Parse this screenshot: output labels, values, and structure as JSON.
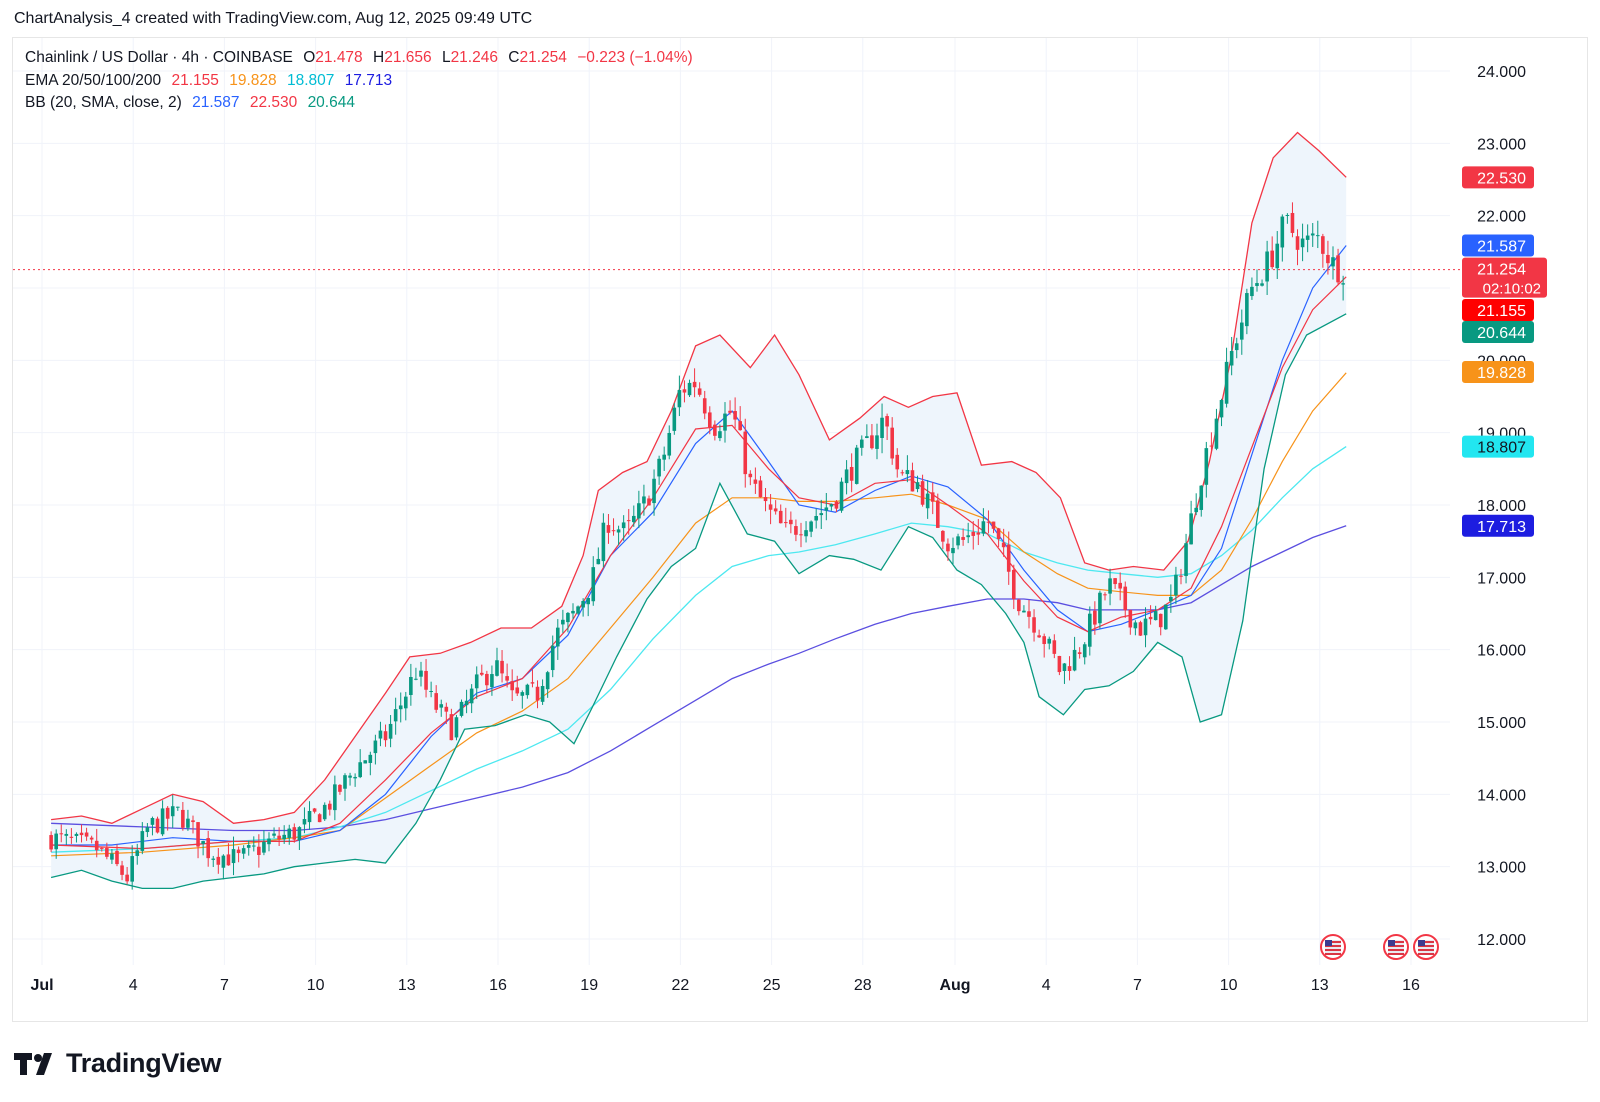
{
  "header": {
    "attribution": "ChartAnalysis_4 created with TradingView.com, Aug 12, 2025 09:49 UTC"
  },
  "legend": {
    "symbol": "Chainlink / US Dollar · 4h · COINBASE",
    "open_label": "O",
    "open": "21.478",
    "high_label": "H",
    "high": "21.656",
    "low_label": "L",
    "low": "21.246",
    "close_label": "C",
    "close": "21.254",
    "change": "−0.223 (−1.04%)",
    "ema_label": "EMA 20/50/100/200",
    "ema20": "21.155",
    "ema50": "19.828",
    "ema100": "18.807",
    "ema200": "17.713",
    "bb_label": "BB (20, SMA, close, 2)",
    "bb_basis": "21.587",
    "bb_upper": "22.530",
    "bb_lower": "20.644"
  },
  "brand": {
    "name": "TradingView"
  },
  "chart_data": {
    "type": "candlestick",
    "symbol": "Chainlink / US Dollar",
    "interval": "4h",
    "exchange": "COINBASE",
    "ylim": [
      11.7,
      24.5
    ],
    "y_ticks": [
      "24.000",
      "23.000",
      "22.000",
      "21.000",
      "20.000",
      "19.000",
      "18.000",
      "17.000",
      "16.000",
      "15.000",
      "14.000",
      "13.000",
      "12.000"
    ],
    "x_ticks": [
      "Jul",
      "4",
      "7",
      "10",
      "13",
      "16",
      "19",
      "22",
      "25",
      "28",
      "Aug",
      "4",
      "7",
      "10",
      "13",
      "16"
    ],
    "colors": {
      "up": "#089981",
      "down": "#f23645",
      "ema20": "#f23645",
      "ema50": "#f7931a",
      "ema100": "#4de8f0",
      "ema200": "#5b4fe0",
      "bb_basis": "#2962ff",
      "bb_upper": "#f23645",
      "bb_lower": "#089981",
      "bb_fill": "#eef5fc"
    },
    "close_price": 21.254,
    "countdown": "02:10:02",
    "price_labels": [
      {
        "value": 22.53,
        "text": "22.530",
        "color": "#f23645"
      },
      {
        "value": 21.587,
        "text": "21.587",
        "color": "#2962ff"
      },
      {
        "value": 21.254,
        "text": "21.254",
        "color": "#f23645"
      },
      {
        "value": 21.155,
        "text": "21.155",
        "color": "#ff0000"
      },
      {
        "value": 20.644,
        "text": "20.644",
        "color": "#089981"
      },
      {
        "value": 19.828,
        "text": "19.828",
        "color": "#f7931a"
      },
      {
        "value": 18.807,
        "text": "18.807",
        "color": "#22e6f0"
      },
      {
        "value": 17.713,
        "text": "17.713",
        "color": "#1d1de0"
      }
    ],
    "close_path": [
      [
        0,
        13.4
      ],
      [
        1.5,
        13.25
      ],
      [
        2.5,
        12.85
      ],
      [
        3.2,
        13.55
      ],
      [
        4.2,
        13.75
      ],
      [
        5.2,
        13.2
      ],
      [
        6.2,
        13.1
      ],
      [
        7.2,
        13.35
      ],
      [
        8.2,
        13.5
      ],
      [
        9.2,
        13.9
      ],
      [
        10,
        14.35
      ],
      [
        11,
        14.8
      ],
      [
        12,
        15.7
      ],
      [
        12.5,
        15.3
      ],
      [
        13.2,
        14.9
      ],
      [
        14,
        15.5
      ],
      [
        14.6,
        15.8
      ],
      [
        15.2,
        15.3
      ],
      [
        16,
        15.4
      ],
      [
        16.6,
        16.2
      ],
      [
        17.2,
        16.5
      ],
      [
        17.8,
        16.95
      ],
      [
        18.3,
        17.8
      ],
      [
        18.9,
        17.6
      ],
      [
        19.5,
        18.0
      ],
      [
        20.1,
        18.6
      ],
      [
        20.7,
        19.6
      ],
      [
        21.2,
        19.7
      ],
      [
        21.8,
        19.1
      ],
      [
        22.4,
        19.3
      ],
      [
        23,
        18.3
      ],
      [
        23.6,
        17.9
      ],
      [
        24.2,
        17.6
      ],
      [
        24.8,
        17.8
      ],
      [
        25.3,
        17.9
      ],
      [
        25.8,
        18.1
      ],
      [
        26.3,
        18.5
      ],
      [
        26.8,
        18.8
      ],
      [
        27.4,
        19.2
      ],
      [
        27.9,
        18.4
      ],
      [
        28.5,
        18.3
      ],
      [
        29,
        17.9
      ],
      [
        29.5,
        17.5
      ],
      [
        30,
        17.5
      ],
      [
        30.8,
        17.8
      ],
      [
        31.3,
        17.3
      ],
      [
        31.8,
        16.7
      ],
      [
        32.5,
        16.3
      ],
      [
        33.2,
        15.7
      ],
      [
        33.8,
        16.0
      ],
      [
        34.3,
        16.45
      ],
      [
        34.8,
        16.9
      ],
      [
        35.3,
        16.6
      ],
      [
        35.8,
        16.3
      ],
      [
        36.4,
        16.4
      ],
      [
        36.9,
        16.7
      ],
      [
        37.3,
        17.4
      ],
      [
        37.8,
        18.4
      ],
      [
        38.3,
        19.2
      ],
      [
        38.9,
        20.2
      ],
      [
        39.5,
        21.0
      ],
      [
        40.1,
        21.4
      ],
      [
        40.6,
        21.9
      ],
      [
        41.2,
        21.6
      ],
      [
        41.7,
        21.7
      ],
      [
        42.2,
        21.3
      ],
      [
        42.6,
        21.25
      ]
    ],
    "bb_upper_path": [
      [
        0,
        13.65
      ],
      [
        1,
        13.7
      ],
      [
        2,
        13.6
      ],
      [
        3,
        13.8
      ],
      [
        4,
        14.0
      ],
      [
        5,
        13.9
      ],
      [
        6,
        13.6
      ],
      [
        7,
        13.65
      ],
      [
        8,
        13.75
      ],
      [
        9,
        14.2
      ],
      [
        10,
        14.8
      ],
      [
        11,
        15.4
      ],
      [
        11.8,
        15.9
      ],
      [
        12.8,
        15.95
      ],
      [
        13.8,
        16.1
      ],
      [
        14.8,
        16.3
      ],
      [
        15.8,
        16.3
      ],
      [
        16.8,
        16.6
      ],
      [
        17.5,
        17.3
      ],
      [
        18,
        18.2
      ],
      [
        18.8,
        18.45
      ],
      [
        19.6,
        18.6
      ],
      [
        20.4,
        19.3
      ],
      [
        21.2,
        20.2
      ],
      [
        22,
        20.35
      ],
      [
        23,
        19.9
      ],
      [
        23.8,
        20.35
      ],
      [
        24.6,
        19.8
      ],
      [
        25.6,
        18.9
      ],
      [
        26.6,
        19.2
      ],
      [
        27.4,
        19.5
      ],
      [
        28.2,
        19.35
      ],
      [
        29,
        19.5
      ],
      [
        29.8,
        19.55
      ],
      [
        30.6,
        18.55
      ],
      [
        31.6,
        18.6
      ],
      [
        32.4,
        18.45
      ],
      [
        33.2,
        18.1
      ],
      [
        34,
        17.2
      ],
      [
        34.8,
        17.1
      ],
      [
        35.6,
        17.15
      ],
      [
        36.6,
        17.1
      ],
      [
        37.4,
        17.5
      ],
      [
        38.1,
        18.6
      ],
      [
        38.8,
        20.0
      ],
      [
        39.5,
        21.9
      ],
      [
        40.2,
        22.8
      ],
      [
        41,
        23.15
      ],
      [
        41.7,
        22.9
      ],
      [
        42.6,
        22.53
      ]
    ],
    "bb_lower_path": [
      [
        0,
        12.85
      ],
      [
        1,
        12.95
      ],
      [
        2,
        12.8
      ],
      [
        3,
        12.7
      ],
      [
        4,
        12.7
      ],
      [
        5,
        12.8
      ],
      [
        6,
        12.85
      ],
      [
        7,
        12.9
      ],
      [
        8,
        13.0
      ],
      [
        9,
        13.05
      ],
      [
        10,
        13.1
      ],
      [
        11,
        13.05
      ],
      [
        12,
        13.6
      ],
      [
        12.8,
        14.2
      ],
      [
        13.6,
        14.9
      ],
      [
        14.6,
        14.95
      ],
      [
        15.6,
        15.1
      ],
      [
        16.4,
        15.0
      ],
      [
        17.2,
        14.7
      ],
      [
        17.8,
        15.2
      ],
      [
        18.6,
        15.9
      ],
      [
        19.6,
        16.7
      ],
      [
        20.4,
        17.15
      ],
      [
        21.2,
        17.4
      ],
      [
        22,
        18.3
      ],
      [
        22.9,
        17.6
      ],
      [
        23.8,
        17.5
      ],
      [
        24.6,
        17.05
      ],
      [
        25.6,
        17.3
      ],
      [
        26.4,
        17.25
      ],
      [
        27.3,
        17.1
      ],
      [
        28.2,
        17.7
      ],
      [
        29,
        17.55
      ],
      [
        29.8,
        17.1
      ],
      [
        30.6,
        16.9
      ],
      [
        31.4,
        16.5
      ],
      [
        32,
        16.1
      ],
      [
        32.5,
        15.35
      ],
      [
        33.3,
        15.1
      ],
      [
        34,
        15.45
      ],
      [
        34.8,
        15.5
      ],
      [
        35.6,
        15.7
      ],
      [
        36.4,
        16.1
      ],
      [
        37.2,
        15.9
      ],
      [
        37.8,
        15.0
      ],
      [
        38.5,
        15.1
      ],
      [
        39.2,
        16.4
      ],
      [
        39.9,
        18.5
      ],
      [
        40.6,
        19.8
      ],
      [
        41.3,
        20.35
      ],
      [
        42.6,
        20.644
      ]
    ],
    "bb_basis_path": [
      [
        0,
        13.3
      ],
      [
        2,
        13.3
      ],
      [
        4,
        13.4
      ],
      [
        6,
        13.35
      ],
      [
        8,
        13.35
      ],
      [
        9.5,
        13.5
      ],
      [
        11,
        14.0
      ],
      [
        12.5,
        14.8
      ],
      [
        14,
        15.4
      ],
      [
        15.5,
        15.6
      ],
      [
        17,
        16.2
      ],
      [
        18.4,
        17.3
      ],
      [
        19.8,
        17.9
      ],
      [
        21.2,
        18.85
      ],
      [
        22.4,
        19.3
      ],
      [
        23.6,
        18.6
      ],
      [
        24.6,
        18.0
      ],
      [
        25.8,
        17.9
      ],
      [
        27.1,
        18.2
      ],
      [
        28.3,
        18.4
      ],
      [
        29.5,
        18.25
      ],
      [
        30.8,
        17.8
      ],
      [
        32,
        17.1
      ],
      [
        33.1,
        16.55
      ],
      [
        34.1,
        16.25
      ],
      [
        35.2,
        16.35
      ],
      [
        36.4,
        16.55
      ],
      [
        37.5,
        16.75
      ],
      [
        38.5,
        17.4
      ],
      [
        39.5,
        18.7
      ],
      [
        40.5,
        20.0
      ],
      [
        41.5,
        21.0
      ],
      [
        42.6,
        21.587
      ]
    ],
    "ema20_path": [
      [
        0,
        13.3
      ],
      [
        3,
        13.25
      ],
      [
        6,
        13.35
      ],
      [
        8,
        13.35
      ],
      [
        9.5,
        13.6
      ],
      [
        11,
        14.2
      ],
      [
        12.5,
        14.85
      ],
      [
        14,
        15.35
      ],
      [
        15.5,
        15.6
      ],
      [
        17,
        16.3
      ],
      [
        18.4,
        17.3
      ],
      [
        19.8,
        18.1
      ],
      [
        21.2,
        19.05
      ],
      [
        22.4,
        19.1
      ],
      [
        23.6,
        18.5
      ],
      [
        24.6,
        18.1
      ],
      [
        25.8,
        18.0
      ],
      [
        27.1,
        18.3
      ],
      [
        28.3,
        18.35
      ],
      [
        29.5,
        18.0
      ],
      [
        30.8,
        17.6
      ],
      [
        32,
        16.95
      ],
      [
        33.1,
        16.45
      ],
      [
        34.1,
        16.25
      ],
      [
        35.2,
        16.45
      ],
      [
        36.4,
        16.55
      ],
      [
        37.5,
        16.85
      ],
      [
        38.5,
        17.7
      ],
      [
        39.5,
        18.8
      ],
      [
        40.5,
        19.9
      ],
      [
        41.5,
        20.7
      ],
      [
        42.6,
        21.155
      ]
    ],
    "ema50_path": [
      [
        0,
        13.15
      ],
      [
        3,
        13.2
      ],
      [
        6,
        13.3
      ],
      [
        8,
        13.4
      ],
      [
        9.5,
        13.5
      ],
      [
        11,
        13.95
      ],
      [
        12.5,
        14.4
      ],
      [
        14,
        14.85
      ],
      [
        15.5,
        15.15
      ],
      [
        17,
        15.6
      ],
      [
        18.4,
        16.3
      ],
      [
        19.8,
        17.0
      ],
      [
        21.2,
        17.75
      ],
      [
        22.4,
        18.1
      ],
      [
        23.6,
        18.1
      ],
      [
        24.6,
        18.05
      ],
      [
        25.8,
        18.05
      ],
      [
        27.1,
        18.1
      ],
      [
        28.3,
        18.15
      ],
      [
        29.5,
        18.0
      ],
      [
        30.8,
        17.8
      ],
      [
        32,
        17.35
      ],
      [
        33.1,
        17.05
      ],
      [
        34.1,
        16.85
      ],
      [
        35.2,
        16.8
      ],
      [
        36.4,
        16.75
      ],
      [
        37.5,
        16.75
      ],
      [
        38.5,
        17.1
      ],
      [
        39.5,
        17.8
      ],
      [
        40.5,
        18.6
      ],
      [
        41.5,
        19.3
      ],
      [
        42.6,
        19.828
      ]
    ],
    "ema100_path": [
      [
        0,
        13.2
      ],
      [
        3,
        13.25
      ],
      [
        6,
        13.35
      ],
      [
        8,
        13.4
      ],
      [
        9.5,
        13.55
      ],
      [
        11,
        13.75
      ],
      [
        12.5,
        14.05
      ],
      [
        14,
        14.35
      ],
      [
        15.5,
        14.6
      ],
      [
        17,
        14.9
      ],
      [
        18.4,
        15.45
      ],
      [
        19.8,
        16.15
      ],
      [
        21.2,
        16.75
      ],
      [
        22.4,
        17.15
      ],
      [
        23.6,
        17.3
      ],
      [
        24.6,
        17.35
      ],
      [
        25.8,
        17.45
      ],
      [
        27.1,
        17.6
      ],
      [
        28.3,
        17.75
      ],
      [
        29.5,
        17.7
      ],
      [
        30.8,
        17.6
      ],
      [
        32,
        17.35
      ],
      [
        33.1,
        17.2
      ],
      [
        34.1,
        17.1
      ],
      [
        35.2,
        17.05
      ],
      [
        36.4,
        17.0
      ],
      [
        37.5,
        17.05
      ],
      [
        38.5,
        17.3
      ],
      [
        39.5,
        17.65
      ],
      [
        40.5,
        18.1
      ],
      [
        41.5,
        18.5
      ],
      [
        42.6,
        18.807
      ]
    ],
    "ema200_path": [
      [
        0,
        13.6
      ],
      [
        3,
        13.55
      ],
      [
        6,
        13.5
      ],
      [
        8,
        13.5
      ],
      [
        9.5,
        13.55
      ],
      [
        11,
        13.65
      ],
      [
        12.5,
        13.8
      ],
      [
        14,
        13.95
      ],
      [
        15.5,
        14.1
      ],
      [
        17,
        14.3
      ],
      [
        18.4,
        14.6
      ],
      [
        19.8,
        14.95
      ],
      [
        21.2,
        15.3
      ],
      [
        22.4,
        15.6
      ],
      [
        23.6,
        15.8
      ],
      [
        24.6,
        15.95
      ],
      [
        25.8,
        16.15
      ],
      [
        27.1,
        16.35
      ],
      [
        28.3,
        16.5
      ],
      [
        29.5,
        16.6
      ],
      [
        30.8,
        16.7
      ],
      [
        32,
        16.7
      ],
      [
        33.1,
        16.65
      ],
      [
        34.1,
        16.55
      ],
      [
        35.2,
        16.55
      ],
      [
        36.4,
        16.55
      ],
      [
        37.5,
        16.65
      ],
      [
        38.5,
        16.9
      ],
      [
        39.5,
        17.15
      ],
      [
        40.5,
        17.35
      ],
      [
        41.5,
        17.55
      ],
      [
        42.6,
        17.713
      ]
    ]
  }
}
